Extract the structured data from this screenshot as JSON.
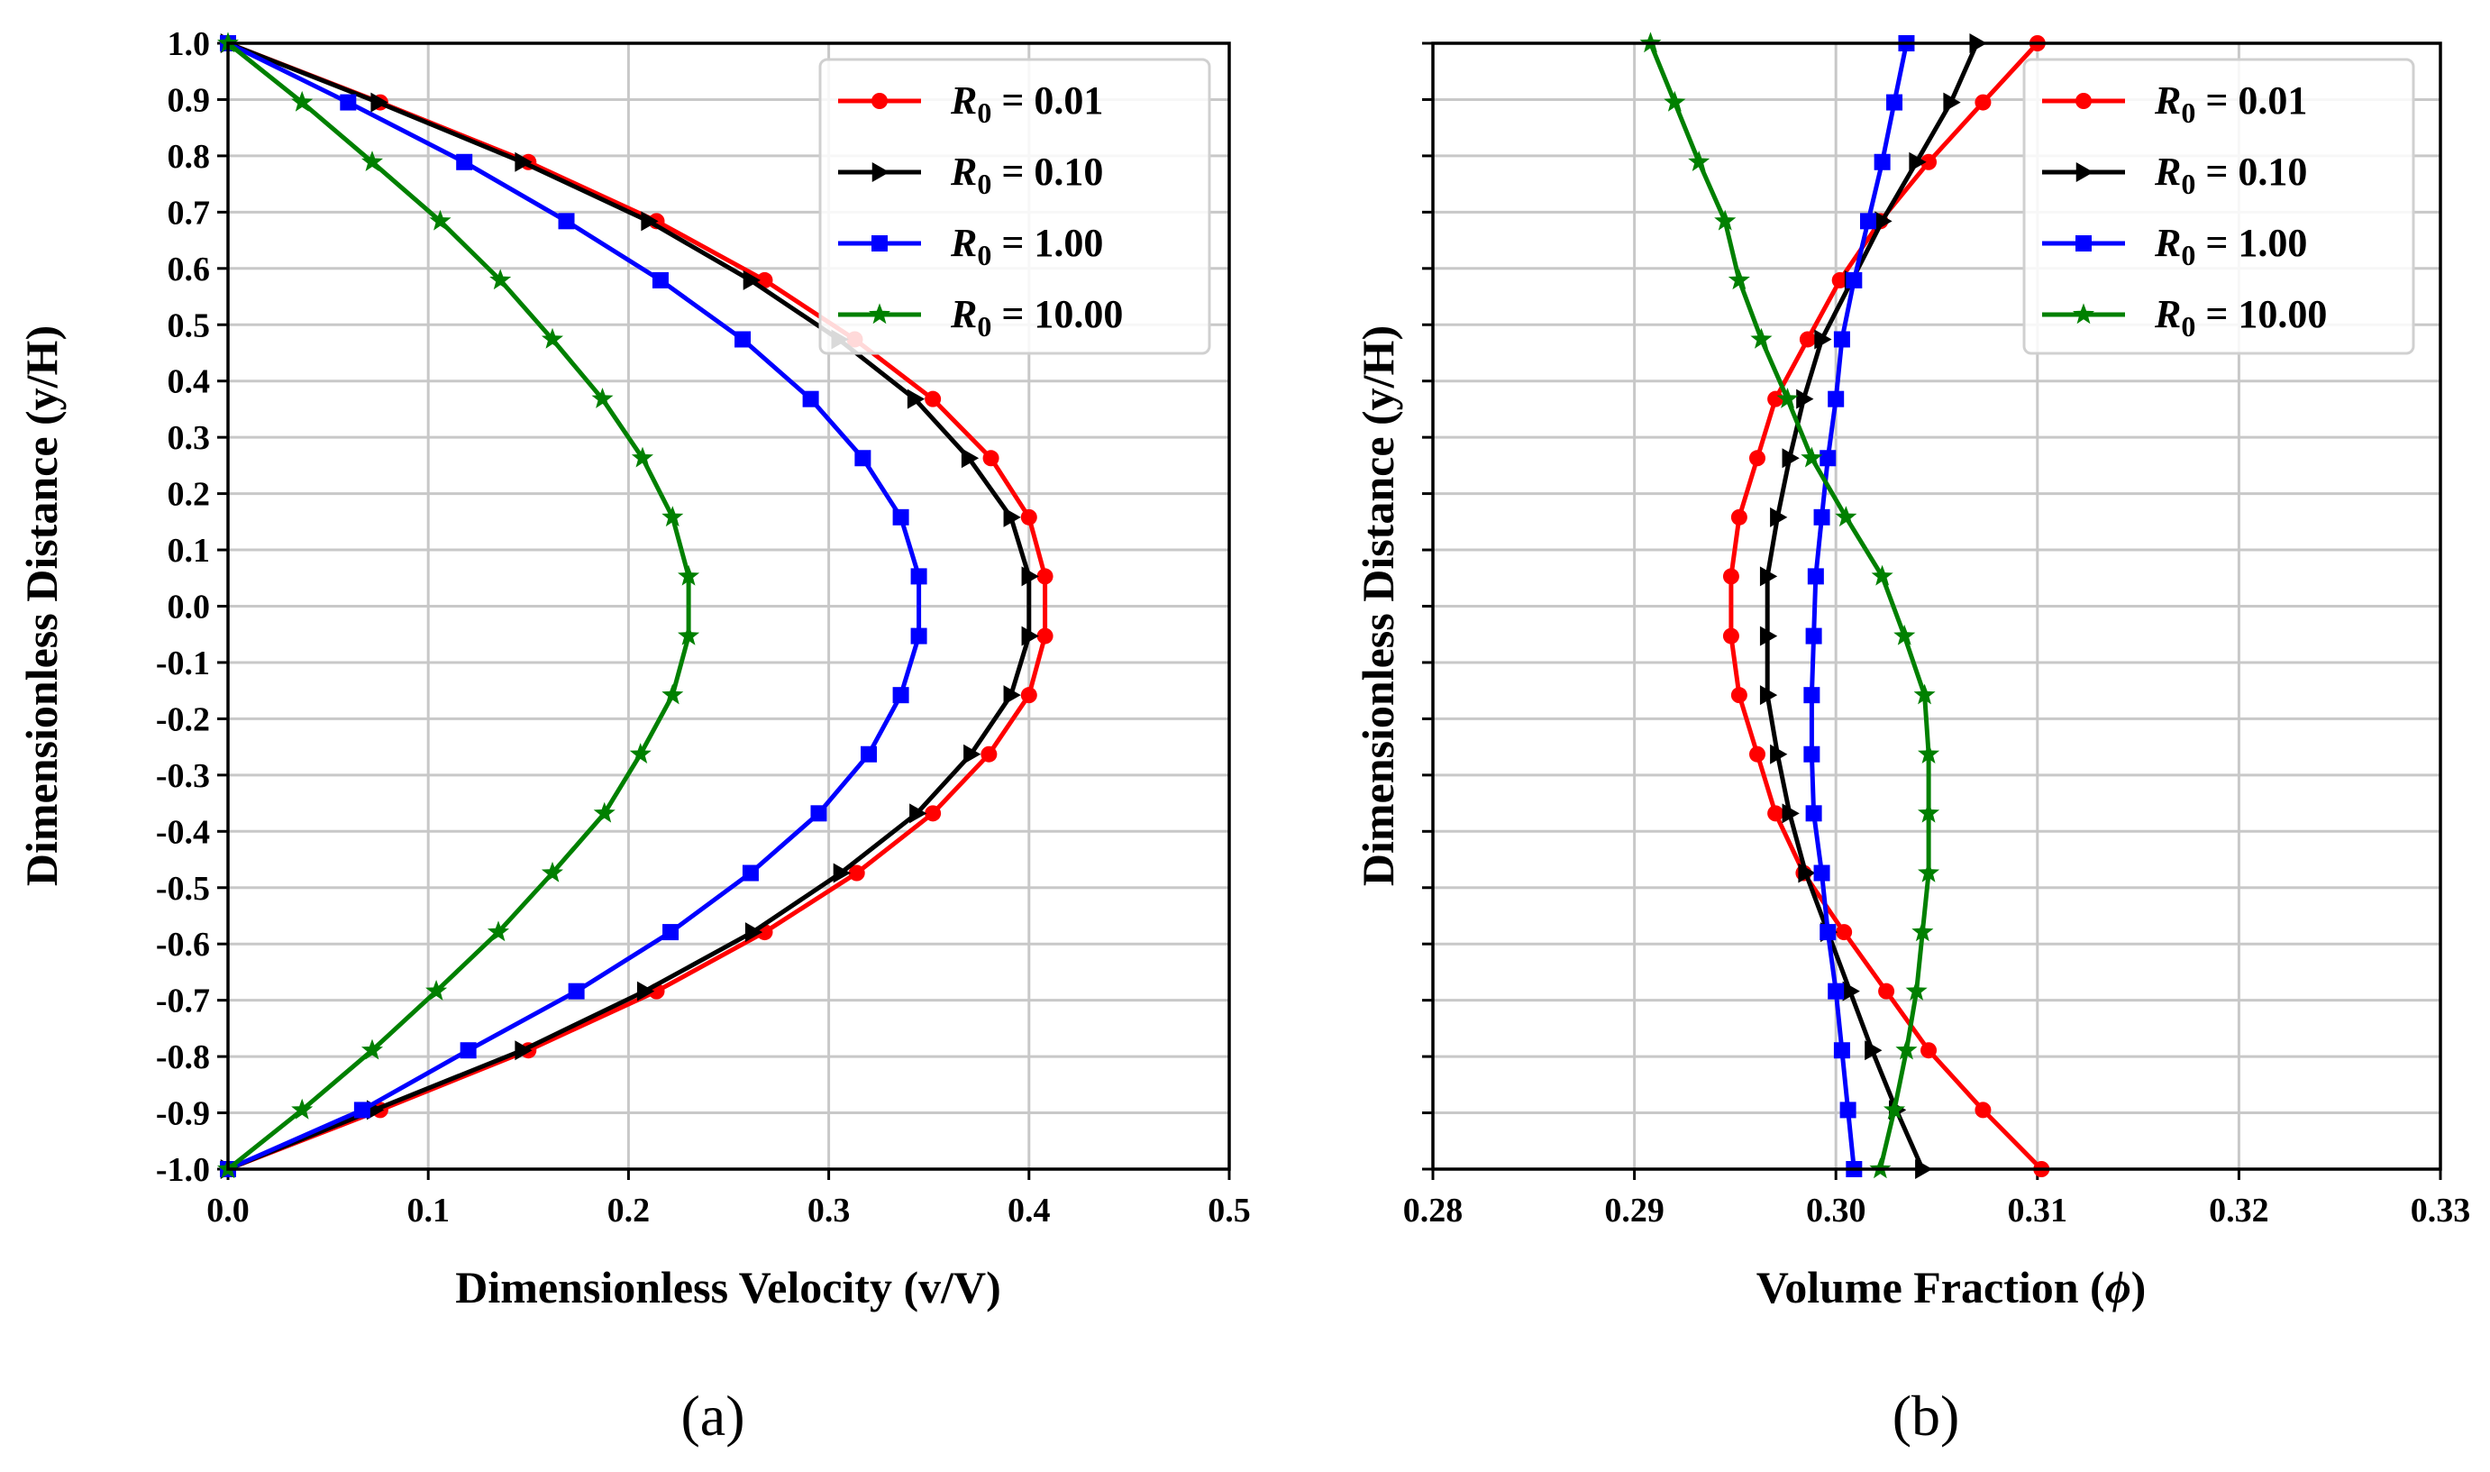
{
  "chart_data": [
    {
      "id": "a",
      "type": "line",
      "panel_label": "(a)",
      "xlabel": "Dimensionless Velocity (v/V)",
      "ylabel": "Dimensionless Distance (y/H)",
      "xlim": [
        0,
        0.5
      ],
      "ylim": [
        -1,
        1
      ],
      "xticks": [
        "0.0",
        "0.1",
        "0.2",
        "0.3",
        "0.4",
        "0.5"
      ],
      "yticks": [
        "-1.0",
        "-0.9",
        "-0.8",
        "-0.7",
        "-0.6",
        "-0.5",
        "-0.4",
        "-0.3",
        "-0.2",
        "-0.1",
        "0.0",
        "0.1",
        "0.2",
        "0.3",
        "0.4",
        "0.5",
        "0.6",
        "0.7",
        "0.8",
        "0.9",
        "1.0"
      ],
      "grid": true,
      "legend_position": "top-right",
      "series": [
        {
          "name": "R_0 = 0.01",
          "legend_var": "R",
          "legend_sub": "0",
          "legend_val": " = 0.01",
          "color": "#ff0000",
          "marker": "circle",
          "points": [
            [
              0,
              1
            ],
            [
              0.076,
              0.895
            ],
            [
              0.15,
              0.789
            ],
            [
              0.214,
              0.684
            ],
            [
              0.268,
              0.579
            ],
            [
              0.313,
              0.474
            ],
            [
              0.352,
              0.368
            ],
            [
              0.381,
              0.263
            ],
            [
              0.4,
              0.158
            ],
            [
              0.408,
              0.053
            ],
            [
              0.408,
              -0.053
            ],
            [
              0.4,
              -0.158
            ],
            [
              0.38,
              -0.263
            ],
            [
              0.352,
              -0.368
            ],
            [
              0.314,
              -0.474
            ],
            [
              0.268,
              -0.579
            ],
            [
              0.214,
              -0.684
            ],
            [
              0.15,
              -0.789
            ],
            [
              0.076,
              -0.895
            ],
            [
              0,
              -1
            ]
          ]
        },
        {
          "name": "R_0 = 0.10",
          "legend_var": "R",
          "legend_sub": "0",
          "legend_val": " = 0.10",
          "color": "#000000",
          "marker": "triangle-right",
          "points": [
            [
              0,
              1
            ],
            [
              0.075,
              0.895
            ],
            [
              0.147,
              0.789
            ],
            [
              0.21,
              0.684
            ],
            [
              0.261,
              0.579
            ],
            [
              0.305,
              0.474
            ],
            [
              0.343,
              0.368
            ],
            [
              0.37,
              0.263
            ],
            [
              0.391,
              0.158
            ],
            [
              0.4,
              0.053
            ],
            [
              0.4,
              -0.053
            ],
            [
              0.391,
              -0.158
            ],
            [
              0.371,
              -0.263
            ],
            [
              0.344,
              -0.368
            ],
            [
              0.306,
              -0.474
            ],
            [
              0.262,
              -0.579
            ],
            [
              0.208,
              -0.684
            ],
            [
              0.147,
              -0.789
            ],
            [
              0.073,
              -0.895
            ],
            [
              0,
              -1
            ]
          ]
        },
        {
          "name": "R_0 = 1.00",
          "legend_var": "R",
          "legend_sub": "0",
          "legend_val": " = 1.00",
          "color": "#0000ff",
          "marker": "square",
          "points": [
            [
              0,
              1
            ],
            [
              0.06,
              0.895
            ],
            [
              0.118,
              0.789
            ],
            [
              0.169,
              0.684
            ],
            [
              0.216,
              0.579
            ],
            [
              0.257,
              0.474
            ],
            [
              0.291,
              0.368
            ],
            [
              0.317,
              0.263
            ],
            [
              0.336,
              0.158
            ],
            [
              0.345,
              0.053
            ],
            [
              0.345,
              -0.053
            ],
            [
              0.336,
              -0.158
            ],
            [
              0.32,
              -0.263
            ],
            [
              0.295,
              -0.368
            ],
            [
              0.261,
              -0.474
            ],
            [
              0.221,
              -0.579
            ],
            [
              0.174,
              -0.684
            ],
            [
              0.12,
              -0.789
            ],
            [
              0.067,
              -0.895
            ],
            [
              0,
              -1
            ]
          ]
        },
        {
          "name": "R_0 = 10.00",
          "legend_var": "R",
          "legend_sub": "0",
          "legend_val": " = 10.00",
          "color": "#008000",
          "marker": "star",
          "points": [
            [
              0,
              1
            ],
            [
              0.037,
              0.895
            ],
            [
              0.072,
              0.789
            ],
            [
              0.106,
              0.684
            ],
            [
              0.136,
              0.579
            ],
            [
              0.162,
              0.474
            ],
            [
              0.187,
              0.368
            ],
            [
              0.207,
              0.263
            ],
            [
              0.222,
              0.158
            ],
            [
              0.23,
              0.053
            ],
            [
              0.23,
              -0.053
            ],
            [
              0.222,
              -0.158
            ],
            [
              0.206,
              -0.263
            ],
            [
              0.188,
              -0.368
            ],
            [
              0.162,
              -0.474
            ],
            [
              0.135,
              -0.579
            ],
            [
              0.104,
              -0.684
            ],
            [
              0.072,
              -0.789
            ],
            [
              0.037,
              -0.895
            ],
            [
              0,
              -1
            ]
          ]
        }
      ]
    },
    {
      "id": "b",
      "type": "line",
      "panel_label": "(b)",
      "xlabel": "Volume Fraction (",
      "xlabel_symbol": "ϕ",
      "xlabel_close": ")",
      "ylabel": "Dimensionless Distance (y/H)",
      "xlim": [
        0.28,
        0.33
      ],
      "ylim": [
        -1,
        1
      ],
      "xticks": [
        "0.28",
        "0.29",
        "0.30",
        "0.31",
        "0.32",
        "0.33"
      ],
      "grid": true,
      "legend_position": "top-right",
      "series": [
        {
          "name": "R_0 = 0.01",
          "legend_var": "R",
          "legend_sub": "0",
          "legend_val": " = 0.01",
          "color": "#ff0000",
          "marker": "circle",
          "points": [
            [
              0.31,
              1
            ],
            [
              0.3073,
              0.895
            ],
            [
              0.3046,
              0.789
            ],
            [
              0.3022,
              0.684
            ],
            [
              0.3002,
              0.579
            ],
            [
              0.2986,
              0.474
            ],
            [
              0.297,
              0.368
            ],
            [
              0.2961,
              0.263
            ],
            [
              0.2952,
              0.158
            ],
            [
              0.2948,
              0.053
            ],
            [
              0.2948,
              -0.053
            ],
            [
              0.2952,
              -0.158
            ],
            [
              0.2961,
              -0.263
            ],
            [
              0.297,
              -0.368
            ],
            [
              0.2984,
              -0.474
            ],
            [
              0.3004,
              -0.579
            ],
            [
              0.3025,
              -0.684
            ],
            [
              0.3046,
              -0.789
            ],
            [
              0.3073,
              -0.895
            ],
            [
              0.3102,
              -1
            ]
          ]
        },
        {
          "name": "R_0 = 0.10",
          "legend_var": "R",
          "legend_sub": "0",
          "legend_val": " = 0.10",
          "color": "#000000",
          "marker": "triangle-right",
          "points": [
            [
              0.307,
              1
            ],
            [
              0.3057,
              0.895
            ],
            [
              0.304,
              0.789
            ],
            [
              0.3023,
              0.684
            ],
            [
              0.3008,
              0.579
            ],
            [
              0.2993,
              0.474
            ],
            [
              0.2984,
              0.368
            ],
            [
              0.2977,
              0.263
            ],
            [
              0.2971,
              0.158
            ],
            [
              0.2966,
              0.053
            ],
            [
              0.2966,
              -0.053
            ],
            [
              0.2966,
              -0.158
            ],
            [
              0.2971,
              -0.263
            ],
            [
              0.2977,
              -0.368
            ],
            [
              0.2985,
              -0.474
            ],
            [
              0.2996,
              -0.579
            ],
            [
              0.3007,
              -0.684
            ],
            [
              0.3018,
              -0.789
            ],
            [
              0.303,
              -0.895
            ],
            [
              0.3043,
              -1
            ]
          ]
        },
        {
          "name": "R_0 = 1.00",
          "legend_var": "R",
          "legend_sub": "0",
          "legend_val": " = 1.00",
          "color": "#0000ff",
          "marker": "square",
          "points": [
            [
              0.3035,
              1
            ],
            [
              0.3029,
              0.895
            ],
            [
              0.3023,
              0.789
            ],
            [
              0.3016,
              0.684
            ],
            [
              0.3009,
              0.579
            ],
            [
              0.3003,
              0.474
            ],
            [
              0.3,
              0.368
            ],
            [
              0.2996,
              0.263
            ],
            [
              0.2993,
              0.158
            ],
            [
              0.299,
              0.053
            ],
            [
              0.2989,
              -0.053
            ],
            [
              0.2988,
              -0.158
            ],
            [
              0.2988,
              -0.263
            ],
            [
              0.2989,
              -0.368
            ],
            [
              0.2993,
              -0.474
            ],
            [
              0.2996,
              -0.579
            ],
            [
              0.3,
              -0.684
            ],
            [
              0.3003,
              -0.789
            ],
            [
              0.3006,
              -0.895
            ],
            [
              0.3009,
              -1
            ]
          ]
        },
        {
          "name": "R_0 = 10.00",
          "legend_var": "R",
          "legend_sub": "0",
          "legend_val": " = 10.00",
          "color": "#008000",
          "marker": "star",
          "points": [
            [
              0.2908,
              1
            ],
            [
              0.292,
              0.895
            ],
            [
              0.2932,
              0.789
            ],
            [
              0.2945,
              0.684
            ],
            [
              0.2952,
              0.579
            ],
            [
              0.2963,
              0.474
            ],
            [
              0.2976,
              0.368
            ],
            [
              0.2988,
              0.263
            ],
            [
              0.3005,
              0.158
            ],
            [
              0.3023,
              0.053
            ],
            [
              0.3034,
              -0.053
            ],
            [
              0.3044,
              -0.158
            ],
            [
              0.3046,
              -0.263
            ],
            [
              0.3046,
              -0.368
            ],
            [
              0.3046,
              -0.474
            ],
            [
              0.3043,
              -0.579
            ],
            [
              0.304,
              -0.684
            ],
            [
              0.3035,
              -0.789
            ],
            [
              0.3029,
              -0.895
            ],
            [
              0.3022,
              -1
            ]
          ]
        }
      ]
    }
  ]
}
